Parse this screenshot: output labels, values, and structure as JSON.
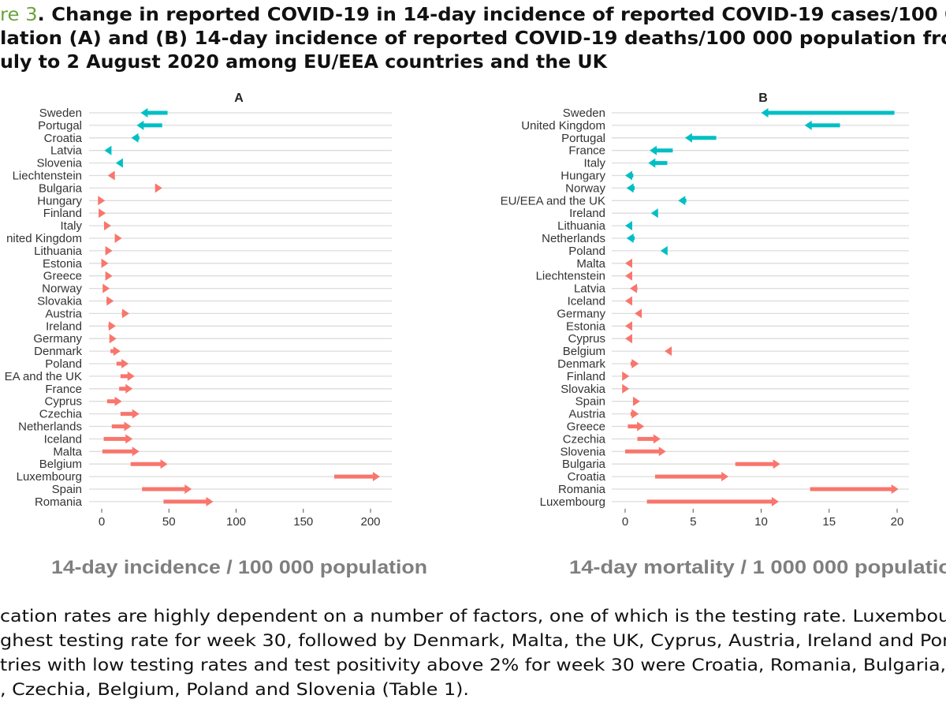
{
  "caption": {
    "figure_label": "re 3",
    "line1": ". Change in reported COVID-19 in 14-day incidence of reported COVID-19 cases/100 0",
    "line2": "lation (A) and (B) 14-day incidence of reported COVID-19 deaths/100 000 population fro",
    "line3": "uly to 2 August 2020 among EU/EEA countries and the UK"
  },
  "body_text": [
    "cation rates are highly dependent on a number of factors, one of which is the testing rate. Luxembou",
    "ghest testing rate for week 30, followed by Denmark, Malta, the UK, Cyprus, Austria, Ireland and Por",
    "tries with low testing rates and test positivity above 2% for week 30 were Croatia, Romania, Bulgaria,",
    ", Czechia, Belgium, Poland and Slovenia (Table 1)."
  ],
  "colors": {
    "decrease": "#00BFC4",
    "increase": "#F8766D",
    "grid": "#dcdcdc",
    "axis_label": "#7f7f7f",
    "figure_label": "#6aa338"
  },
  "chart_data": [
    {
      "type": "arrow",
      "panel": "A",
      "xlabel": "14-day incidence / 100 000 population",
      "xlim": [
        -8,
        215
      ],
      "xticks": [
        0,
        50,
        100,
        150,
        200
      ],
      "grid": true,
      "rows": [
        {
          "name": "Sweden",
          "from": 49,
          "to": 29,
          "c": "#00BFC4"
        },
        {
          "name": "Portugal",
          "from": 45,
          "to": 26,
          "c": "#00BFC4"
        },
        {
          "name": "Croatia",
          "from": 28,
          "to": 22,
          "c": "#00BFC4"
        },
        {
          "name": "Latvia",
          "from": 6.5,
          "to": 2,
          "c": "#00BFC4"
        },
        {
          "name": "Slovenia",
          "from": 15,
          "to": 10.5,
          "c": "#00BFC4"
        },
        {
          "name": "Liechtenstein",
          "from": 9,
          "to": 4.5,
          "c": "#F8766D"
        },
        {
          "name": "Bulgaria",
          "from": 40,
          "to": 45,
          "c": "#F8766D"
        },
        {
          "name": "Hungary",
          "from": 0,
          "to": 2.5,
          "c": "#F8766D"
        },
        {
          "name": "Finland",
          "from": 0.5,
          "to": 3,
          "c": "#F8766D"
        },
        {
          "name": "Italy",
          "from": 2,
          "to": 7,
          "c": "#F8766D"
        },
        {
          "name": "nited Kingdom",
          "from": 10,
          "to": 15,
          "c": "#F8766D"
        },
        {
          "name": "Lithuania",
          "from": 3,
          "to": 8,
          "c": "#F8766D"
        },
        {
          "name": "Estonia",
          "from": 1,
          "to": 5,
          "c": "#F8766D"
        },
        {
          "name": "Greece",
          "from": 3,
          "to": 8,
          "c": "#F8766D"
        },
        {
          "name": "Norway",
          "from": 1.5,
          "to": 6,
          "c": "#F8766D"
        },
        {
          "name": "Slovakia",
          "from": 3.5,
          "to": 9,
          "c": "#F8766D"
        },
        {
          "name": "Austria",
          "from": 15,
          "to": 20.5,
          "c": "#F8766D"
        },
        {
          "name": "Ireland",
          "from": 5,
          "to": 10.5,
          "c": "#F8766D"
        },
        {
          "name": "Germany",
          "from": 6.5,
          "to": 11,
          "c": "#F8766D"
        },
        {
          "name": "Denmark",
          "from": 6.5,
          "to": 14,
          "c": "#F8766D"
        },
        {
          "name": "Poland",
          "from": 11,
          "to": 20,
          "c": "#F8766D"
        },
        {
          "name": "EA and the UK",
          "from": 14,
          "to": 24.5,
          "c": "#F8766D"
        },
        {
          "name": "France",
          "from": 13,
          "to": 23,
          "c": "#F8766D"
        },
        {
          "name": "Cyprus",
          "from": 4,
          "to": 15,
          "c": "#F8766D"
        },
        {
          "name": "Czechia",
          "from": 14,
          "to": 28,
          "c": "#F8766D"
        },
        {
          "name": "Netherlands",
          "from": 7.5,
          "to": 22,
          "c": "#F8766D"
        },
        {
          "name": "Iceland",
          "from": 1.5,
          "to": 23,
          "c": "#F8766D"
        },
        {
          "name": "Malta",
          "from": 0.5,
          "to": 28,
          "c": "#F8766D"
        },
        {
          "name": "Belgium",
          "from": 21.5,
          "to": 49,
          "c": "#F8766D"
        },
        {
          "name": "Luxembourg",
          "from": 173,
          "to": 207,
          "c": "#F8766D"
        },
        {
          "name": "Spain",
          "from": 30,
          "to": 67,
          "c": "#F8766D"
        },
        {
          "name": "Romania",
          "from": 46,
          "to": 83,
          "c": "#F8766D"
        }
      ]
    },
    {
      "type": "arrow",
      "panel": "B",
      "xlabel": "14-day mortality / 1 000 000 populatio",
      "xlim": [
        -1,
        21
      ],
      "xticks": [
        0,
        5,
        10,
        15,
        20
      ],
      "grid": true,
      "rows": [
        {
          "name": "Sweden",
          "from": 19.8,
          "to": 10,
          "c": "#00BFC4"
        },
        {
          "name": "United Kingdom",
          "from": 15.8,
          "to": 13.2,
          "c": "#00BFC4"
        },
        {
          "name": "Portugal",
          "from": 6.7,
          "to": 4.4,
          "c": "#00BFC4"
        },
        {
          "name": "France",
          "from": 3.5,
          "to": 1.8,
          "c": "#00BFC4"
        },
        {
          "name": "Italy",
          "from": 3.1,
          "to": 1.7,
          "c": "#00BFC4"
        },
        {
          "name": "Hungary",
          "from": 0.6,
          "to": 0,
          "c": "#00BFC4"
        },
        {
          "name": "Norway",
          "from": 0.7,
          "to": 0.1,
          "c": "#00BFC4"
        },
        {
          "name": "EU/EEA and the UK",
          "from": 4.5,
          "to": 3.9,
          "c": "#00BFC4"
        },
        {
          "name": "Ireland",
          "from": 2.4,
          "to": 1.9,
          "c": "#00BFC4"
        },
        {
          "name": "Lithuania",
          "from": 0.5,
          "to": 0,
          "c": "#00BFC4"
        },
        {
          "name": "Netherlands",
          "from": 0.7,
          "to": 0.1,
          "c": "#00BFC4"
        },
        {
          "name": "Poland",
          "from": 3.1,
          "to": 2.6,
          "c": "#00BFC4"
        },
        {
          "name": "Malta",
          "from": 0.5,
          "to": 0,
          "c": "#F8766D"
        },
        {
          "name": "Liechtenstein",
          "from": 0.5,
          "to": 0,
          "c": "#F8766D"
        },
        {
          "name": "Latvia",
          "from": 0.9,
          "to": 0.35,
          "c": "#F8766D"
        },
        {
          "name": "Iceland",
          "from": 0.5,
          "to": 0,
          "c": "#F8766D"
        },
        {
          "name": "Germany",
          "from": 1.2,
          "to": 0.7,
          "c": "#F8766D"
        },
        {
          "name": "Estonia",
          "from": 0.5,
          "to": 0,
          "c": "#F8766D"
        },
        {
          "name": "Cyprus",
          "from": 0.5,
          "to": 0,
          "c": "#F8766D"
        },
        {
          "name": "Belgium",
          "from": 3.3,
          "to": 2.9,
          "c": "#F8766D"
        },
        {
          "name": "Denmark",
          "from": 0.4,
          "to": 1.0,
          "c": "#F8766D"
        },
        {
          "name": "Finland",
          "from": -0.2,
          "to": 0.3,
          "c": "#F8766D"
        },
        {
          "name": "Slovakia",
          "from": -0.2,
          "to": 0.3,
          "c": "#F8766D"
        },
        {
          "name": "Spain",
          "from": 0.6,
          "to": 1.1,
          "c": "#F8766D"
        },
        {
          "name": "Austria",
          "from": 0.4,
          "to": 1.0,
          "c": "#F8766D"
        },
        {
          "name": "Greece",
          "from": 0.2,
          "to": 1.4,
          "c": "#F8766D"
        },
        {
          "name": "Czechia",
          "from": 0.9,
          "to": 2.6,
          "c": "#F8766D"
        },
        {
          "name": "Slovenia",
          "from": 0,
          "to": 3.0,
          "c": "#F8766D"
        },
        {
          "name": "Bulgaria",
          "from": 8.1,
          "to": 11.4,
          "c": "#F8766D"
        },
        {
          "name": "Croatia",
          "from": 2.2,
          "to": 7.6,
          "c": "#F8766D"
        },
        {
          "name": "Romania",
          "from": 13.6,
          "to": 20.1,
          "c": "#F8766D"
        },
        {
          "name": "Luxembourg",
          "from": 1.6,
          "to": 11.3,
          "c": "#F8766D"
        }
      ]
    }
  ]
}
